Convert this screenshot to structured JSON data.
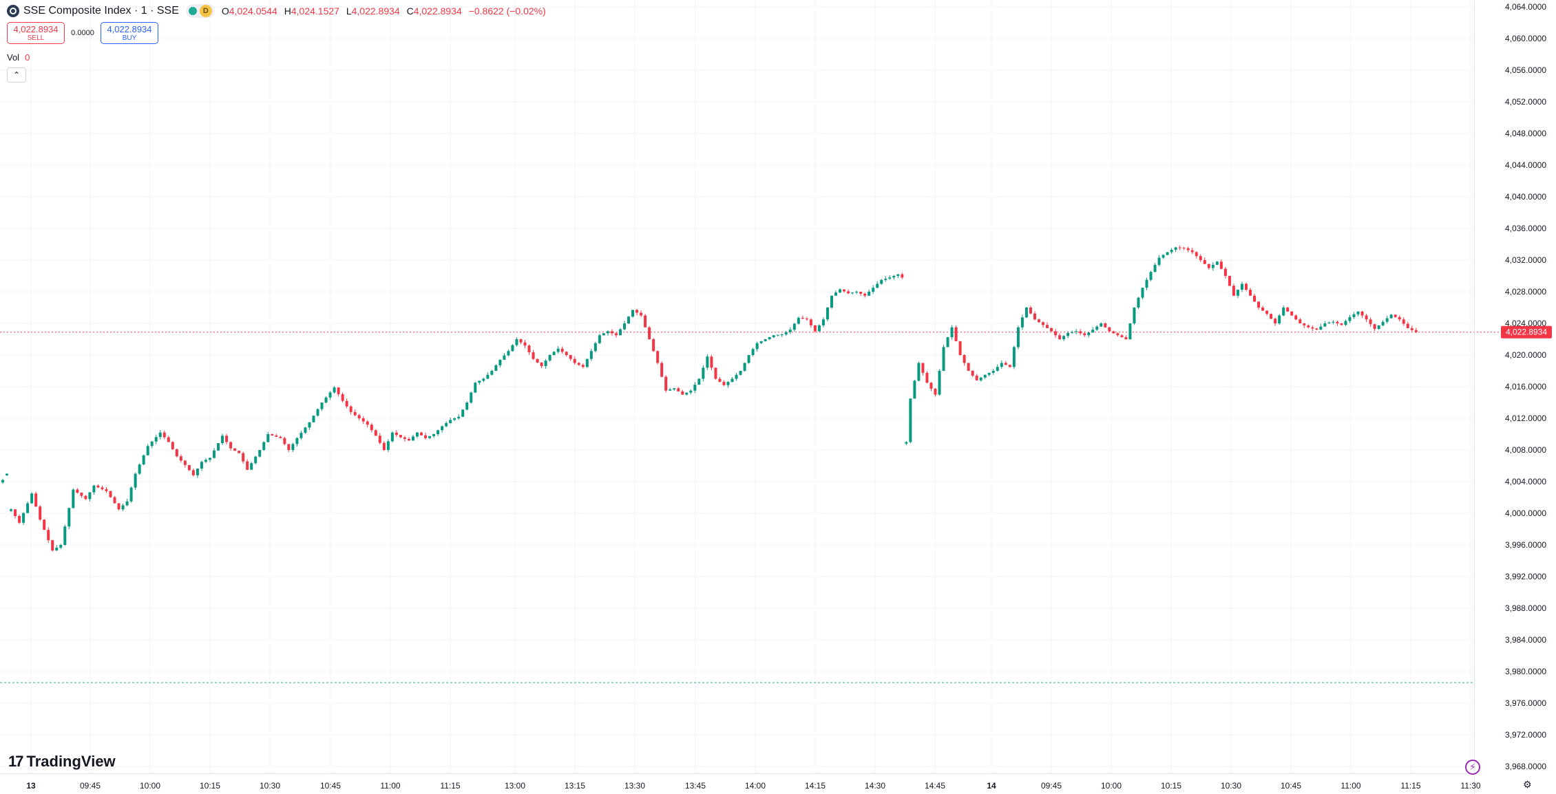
{
  "legend": {
    "title": "SSE Composite Index · 1 · SSE",
    "badge": "D",
    "o_label": "O",
    "o_value": "4,024.0544",
    "h_label": "H",
    "h_value": "4,024.1527",
    "l_label": "L",
    "l_value": "4,022.8934",
    "c_label": "C",
    "c_value": "4,022.8934",
    "change": "−0.8622 (−0.02%)"
  },
  "trade": {
    "sell_price": "4,022.8934",
    "sell_label": "SELL",
    "spread": "0.0000",
    "buy_price": "4,022.8934",
    "buy_label": "BUY"
  },
  "volume": {
    "label": "Vol",
    "value": "0"
  },
  "collapse_icon": "chevron-up-icon",
  "brand": "TradingView",
  "colors": {
    "up": "#089981",
    "down": "#f23645",
    "grid": "#f0f3fa",
    "last_price": "#f23645",
    "reference_line": "#26a69a"
  },
  "chart_data": {
    "type": "candlestick",
    "y_axis_ticks": [
      "4,064.0000",
      "4,060.0000",
      "4,056.0000",
      "4,052.0000",
      "4,048.0000",
      "4,044.0000",
      "4,040.0000",
      "4,036.0000",
      "4,032.0000",
      "4,028.0000",
      "4,024.0000",
      "4,020.0000",
      "4,016.0000",
      "4,012.0000",
      "4,008.0000",
      "4,004.0000",
      "4,000.0000",
      "3,996.0000",
      "3,992.0000",
      "3,988.0000",
      "3,984.0000",
      "3,980.0000",
      "3,976.0000",
      "3,972.0000",
      "3,968.0000"
    ],
    "ylim": [
      3966,
      4065
    ],
    "x_axis_ticks": [
      "13",
      "09:45",
      "10:00",
      "10:15",
      "10:30",
      "10:45",
      "11:00",
      "11:15",
      "13:00",
      "13:15",
      "13:30",
      "13:45",
      "14:00",
      "14:15",
      "14:30",
      "14:45",
      "14",
      "09:45",
      "10:00",
      "10:15",
      "10:30",
      "10:45",
      "11:00",
      "11:15",
      "11:30"
    ],
    "last_price": "4,022.8934",
    "last_price_value": 4022.8934,
    "reference_line_value": 3978.6,
    "close_path": [
      [
        0,
        4004.2
      ],
      [
        5,
        4005.0
      ],
      [
        10,
        4000.5
      ],
      [
        12,
        3998.8
      ],
      [
        15,
        4002.5
      ],
      [
        17,
        3999.2
      ],
      [
        20,
        3995.3
      ],
      [
        22,
        3996.0
      ],
      [
        25,
        4003.0
      ],
      [
        28,
        4001.8
      ],
      [
        30,
        4003.5
      ],
      [
        33,
        4002.8
      ],
      [
        36,
        4000.5
      ],
      [
        38,
        4001.5
      ],
      [
        40,
        4005.0
      ],
      [
        43,
        4008.5
      ],
      [
        46,
        4010.2
      ],
      [
        48,
        4009.0
      ],
      [
        50,
        4007.2
      ],
      [
        52,
        4006.1
      ],
      [
        54,
        4004.8
      ],
      [
        56,
        4006.5
      ],
      [
        58,
        4007.0
      ],
      [
        61,
        4009.8
      ],
      [
        63,
        4008.2
      ],
      [
        65,
        4007.6
      ],
      [
        67,
        4005.5
      ],
      [
        70,
        4008.0
      ],
      [
        72,
        4010.0
      ],
      [
        75,
        4009.5
      ],
      [
        77,
        4008.0
      ],
      [
        79,
        4009.5
      ],
      [
        82,
        4011.5
      ],
      [
        85,
        4014.0
      ],
      [
        88,
        4015.9
      ],
      [
        90,
        4014.2
      ],
      [
        92,
        4012.8
      ],
      [
        94,
        4012.0
      ],
      [
        96,
        4011.2
      ],
      [
        98,
        4009.8
      ],
      [
        100,
        4008.0
      ],
      [
        102,
        4010.2
      ],
      [
        104,
        4009.6
      ],
      [
        106,
        4009.2
      ],
      [
        108,
        4010.2
      ],
      [
        110,
        4009.5
      ],
      [
        112,
        4010.0
      ],
      [
        114,
        4011.0
      ],
      [
        116,
        4011.8
      ],
      [
        118,
        4012.2
      ],
      [
        120,
        4014.0
      ],
      [
        122,
        4016.5
      ],
      [
        124,
        4017.0
      ],
      [
        126,
        4018.0
      ],
      [
        128,
        4019.4
      ],
      [
        130,
        4020.5
      ],
      [
        132,
        4022.0
      ],
      [
        134,
        4021.2
      ],
      [
        136,
        4019.5
      ],
      [
        138,
        4018.6
      ],
      [
        140,
        4020.0
      ],
      [
        142,
        4020.8
      ],
      [
        144,
        4020.0
      ],
      [
        146,
        4019.0
      ],
      [
        148,
        4018.5
      ],
      [
        150,
        4020.5
      ],
      [
        152,
        4022.5
      ],
      [
        154,
        4023.0
      ],
      [
        156,
        4022.5
      ],
      [
        158,
        4024.0
      ],
      [
        160,
        4025.7
      ],
      [
        162,
        4025.0
      ],
      [
        164,
        4022.0
      ],
      [
        166,
        4019.0
      ],
      [
        168,
        4015.5
      ],
      [
        170,
        4015.8
      ],
      [
        172,
        4015.0
      ],
      [
        174,
        4015.5
      ],
      [
        176,
        4017.0
      ],
      [
        178,
        4019.8
      ],
      [
        180,
        4017.0
      ],
      [
        182,
        4016.2
      ],
      [
        184,
        4017.0
      ],
      [
        186,
        4018.0
      ],
      [
        188,
        4020.0
      ],
      [
        190,
        4021.5
      ],
      [
        192,
        4022.0
      ],
      [
        194,
        4022.5
      ],
      [
        196,
        4022.6
      ],
      [
        198,
        4023.2
      ],
      [
        200,
        4024.7
      ],
      [
        202,
        4024.5
      ],
      [
        204,
        4023.0
      ],
      [
        206,
        4024.5
      ],
      [
        208,
        4027.5
      ],
      [
        210,
        4028.3
      ],
      [
        212,
        4027.8
      ],
      [
        214,
        4028.0
      ],
      [
        216,
        4027.5
      ],
      [
        218,
        4028.5
      ],
      [
        220,
        4029.5
      ],
      [
        222,
        4029.8
      ],
      [
        224,
        4030.2
      ],
      [
        225,
        4029.8
      ],
      [
        233,
        4009.0
      ],
      [
        234,
        4014.5
      ],
      [
        236,
        4019.0
      ],
      [
        238,
        4016.5
      ],
      [
        240,
        4015.0
      ],
      [
        242,
        4021.0
      ],
      [
        244,
        4023.5
      ],
      [
        246,
        4020.0
      ],
      [
        248,
        4018.0
      ],
      [
        250,
        4016.8
      ],
      [
        252,
        4017.5
      ],
      [
        254,
        4018.0
      ],
      [
        256,
        4019.0
      ],
      [
        258,
        4018.5
      ],
      [
        260,
        4023.5
      ],
      [
        262,
        4026.0
      ],
      [
        264,
        4024.5
      ],
      [
        266,
        4023.8
      ],
      [
        268,
        4023.0
      ],
      [
        270,
        4022.0
      ],
      [
        272,
        4022.8
      ],
      [
        274,
        4023.0
      ],
      [
        276,
        4022.5
      ],
      [
        278,
        4023.2
      ],
      [
        280,
        4024.0
      ],
      [
        282,
        4023.0
      ],
      [
        284,
        4022.5
      ],
      [
        286,
        4022.0
      ],
      [
        288,
        4026.0
      ],
      [
        290,
        4028.5
      ],
      [
        292,
        4030.5
      ],
      [
        294,
        4032.3
      ],
      [
        296,
        4033.0
      ],
      [
        298,
        4033.6
      ],
      [
        300,
        4033.5
      ],
      [
        302,
        4033.0
      ],
      [
        304,
        4032.0
      ],
      [
        306,
        4031.0
      ],
      [
        308,
        4031.8
      ],
      [
        310,
        4030.0
      ],
      [
        312,
        4027.5
      ],
      [
        314,
        4029.0
      ],
      [
        316,
        4027.5
      ],
      [
        318,
        4026.0
      ],
      [
        320,
        4025.2
      ],
      [
        322,
        4024.0
      ],
      [
        324,
        4026.0
      ],
      [
        326,
        4025.0
      ],
      [
        328,
        4024.0
      ],
      [
        330,
        4023.5
      ],
      [
        332,
        4023.2
      ],
      [
        334,
        4024.0
      ],
      [
        336,
        4024.2
      ],
      [
        338,
        4023.8
      ],
      [
        340,
        4024.8
      ],
      [
        342,
        4025.5
      ],
      [
        344,
        4024.5
      ],
      [
        346,
        4023.3
      ],
      [
        348,
        4024.2
      ],
      [
        350,
        4025.1
      ],
      [
        352,
        4024.5
      ],
      [
        354,
        4023.4
      ],
      [
        356,
        4022.9
      ]
    ]
  }
}
